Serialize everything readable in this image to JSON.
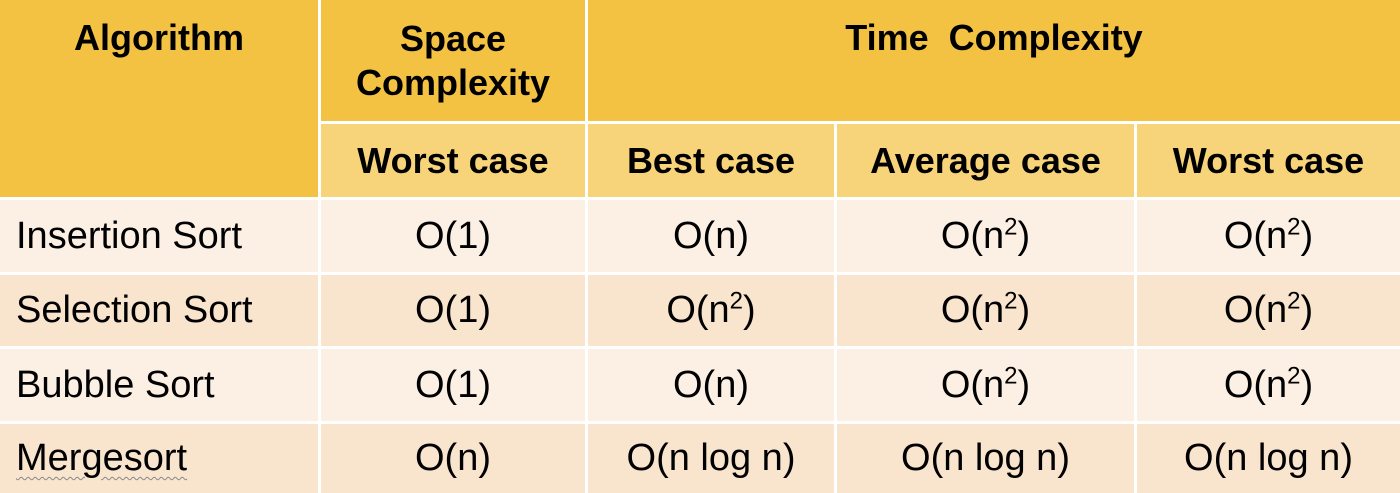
{
  "table": {
    "headers": {
      "algorithm": "Algorithm",
      "space_complexity": "Space Complexity",
      "time_complexity": "Time  Complexity",
      "space_worst": "Worst case",
      "time_best": "Best case",
      "time_average": "Average case",
      "time_worst": "Worst case"
    },
    "rows": [
      {
        "algorithm": "Insertion Sort",
        "space_worst": "O(1)",
        "time_best": "O(n)",
        "time_average": "O(n2)",
        "time_worst": "O(n2)"
      },
      {
        "algorithm": "Selection Sort",
        "space_worst": "O(1)",
        "time_best": "O(n2)",
        "time_average": "O(n2)",
        "time_worst": "O(n2)"
      },
      {
        "algorithm": "Bubble Sort",
        "space_worst": "O(1)",
        "time_best": "O(n)",
        "time_average": "O(n2)",
        "time_worst": "O(n2)"
      },
      {
        "algorithm": "Mergesort",
        "space_worst": "O(n)",
        "time_best": "O(n log n)",
        "time_average": "O(n log n)",
        "time_worst": "O(n log n)"
      }
    ]
  },
  "colors": {
    "header_dark": "#f4c243",
    "header_light": "#f7d37a",
    "row_light": "#fcf0e5",
    "row_dark": "#f9e4cd"
  }
}
